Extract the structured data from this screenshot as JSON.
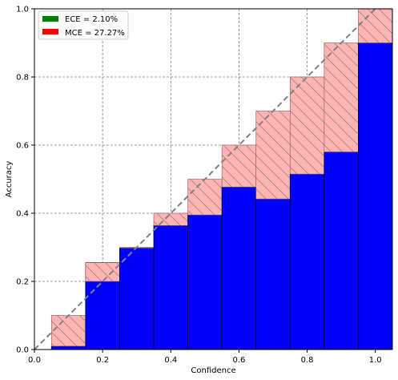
{
  "chart_data": {
    "type": "bar",
    "title": "",
    "xlabel": "Confidence",
    "ylabel": "Accuracy",
    "xlim": [
      0.0,
      1.05
    ],
    "ylim": [
      0.0,
      1.0
    ],
    "xticks": [
      "0.0",
      "0.2",
      "0.4",
      "0.6",
      "0.8",
      "1.0"
    ],
    "yticks": [
      "0.0",
      "0.2",
      "0.4",
      "0.6",
      "0.8",
      "1.0"
    ],
    "grid": true,
    "legend_placement": "top-left",
    "bin_width": 0.1,
    "bin_centers": [
      0.1,
      0.2,
      0.3,
      0.4,
      0.5,
      0.6,
      0.7,
      0.8,
      0.9,
      1.0
    ],
    "series": [
      {
        "name": "ECE = 2.10%",
        "color": "#008000",
        "kind": "accuracy",
        "bar_color": "#0000ff",
        "values": [
          0.01,
          0.255,
          0.298,
          0.364,
          0.395,
          0.477,
          0.442,
          0.515,
          0.58,
          0.9
        ]
      },
      {
        "name": "MCE = 27.27%",
        "color": "#ff0000",
        "kind": "gap",
        "bar_color": "#ffb3b3",
        "values": [
          0.1,
          0.2,
          0.3,
          0.4,
          0.5,
          0.6,
          0.7,
          0.8,
          0.9,
          1.0
        ]
      }
    ],
    "reference_line": {
      "style": "dashed",
      "color": "#808080",
      "from": [
        0,
        0
      ],
      "to": [
        1,
        1
      ]
    }
  }
}
